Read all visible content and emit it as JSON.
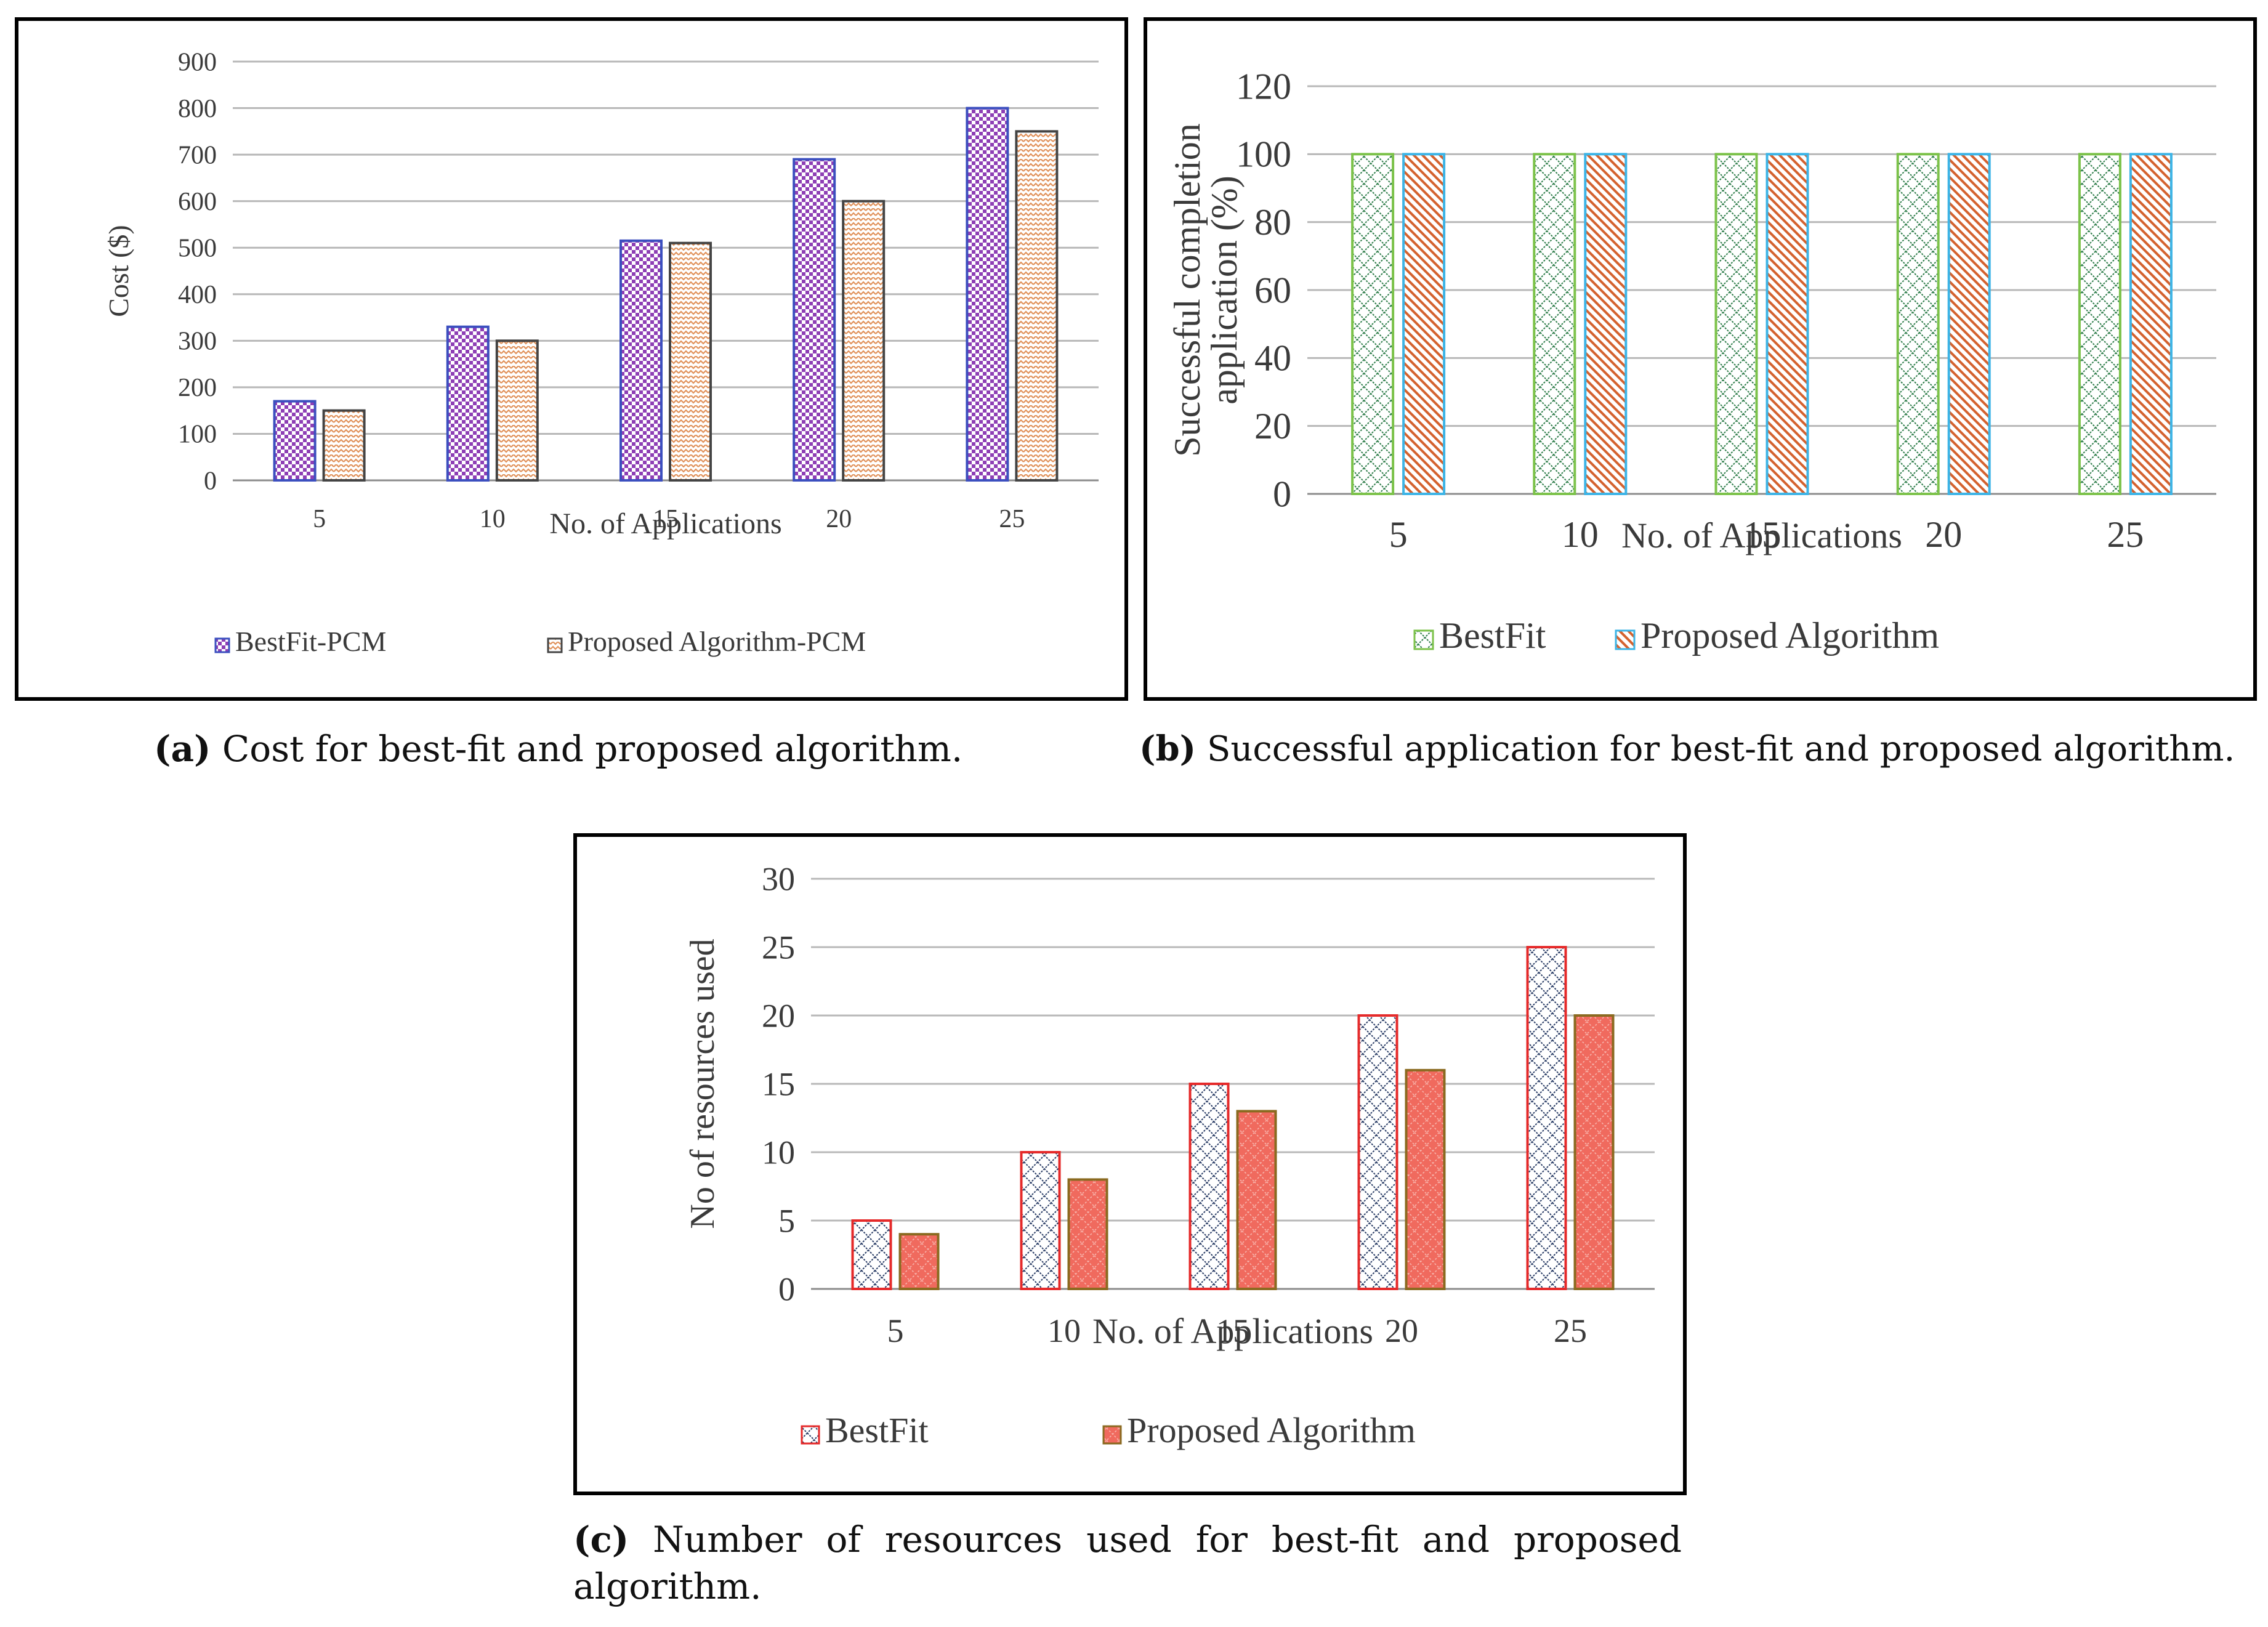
{
  "colors": {
    "grid": "#b8b8b8",
    "axis": "#8c8c8c"
  },
  "chart_data": [
    {
      "id": "a",
      "type": "bar",
      "title": "",
      "categories": [
        "5",
        "10",
        "15",
        "20",
        "25"
      ],
      "series": [
        {
          "name": "BestFit-PCM",
          "values": [
            170,
            330,
            515,
            690,
            800
          ],
          "pattern": "checker",
          "fill": "#8e3fb5",
          "stroke": "#3c4fbf"
        },
        {
          "name": "Proposed Algorithm-PCM",
          "values": [
            150,
            300,
            510,
            600,
            750
          ],
          "pattern": "zigzag",
          "fill": "#e0915a",
          "stroke": "#444444"
        }
      ],
      "xlabel": "No. of Applications",
      "ylabel": "Cost ($)",
      "ylim": [
        0,
        900
      ],
      "yticks": [
        "0",
        "100",
        "200",
        "300",
        "400",
        "500",
        "600",
        "700",
        "800",
        "900"
      ],
      "grid": true,
      "legend": "bottom"
    },
    {
      "id": "b",
      "type": "bar",
      "title": "",
      "categories": [
        "5",
        "10",
        "15",
        "20",
        "25"
      ],
      "series": [
        {
          "name": "BestFit",
          "values": [
            100,
            100,
            100,
            100,
            100
          ],
          "pattern": "diamond",
          "fill": "#2e7d4a",
          "stroke": "#7cc24a"
        },
        {
          "name": "Proposed Algorithm",
          "values": [
            100,
            100,
            100,
            100,
            100
          ],
          "pattern": "diag",
          "fill": "#d4622f",
          "stroke": "#3db4e6"
        }
      ],
      "xlabel": "No. of Applications",
      "ylabel": [
        "Successful completion",
        "application (%)"
      ],
      "ylim": [
        0,
        120
      ],
      "yticks": [
        "0",
        "20",
        "40",
        "60",
        "80",
        "100",
        "120"
      ],
      "grid": true,
      "legend": "bottom"
    },
    {
      "id": "c",
      "type": "bar",
      "title": "",
      "categories": [
        "5",
        "10",
        "15",
        "20",
        "25"
      ],
      "series": [
        {
          "name": "BestFit",
          "values": [
            5,
            10,
            15,
            20,
            25
          ],
          "pattern": "navydiamond",
          "fill": "#2a3d66",
          "stroke": "#e52a2a"
        },
        {
          "name": "Proposed Algorithm",
          "values": [
            4,
            8,
            13,
            16,
            20
          ],
          "pattern": "salmon",
          "fill": "#f06a5e",
          "stroke": "#8a6a20"
        }
      ],
      "xlabel": "No. of Applications",
      "ylabel": "No of resources used",
      "ylim": [
        0,
        30
      ],
      "yticks": [
        "0",
        "5",
        "10",
        "15",
        "20",
        "25",
        "30"
      ],
      "grid": true,
      "legend": "bottom"
    }
  ],
  "captions": {
    "a": {
      "label": "(a)",
      "text": " Cost for best-fit and proposed algorithm."
    },
    "b": {
      "label": "(b)",
      "text": " Successful application for best-fit and proposed algorithm."
    },
    "c": {
      "label": "(c)",
      "text": " Number of resources used for best-fit and proposed algorithm."
    }
  }
}
